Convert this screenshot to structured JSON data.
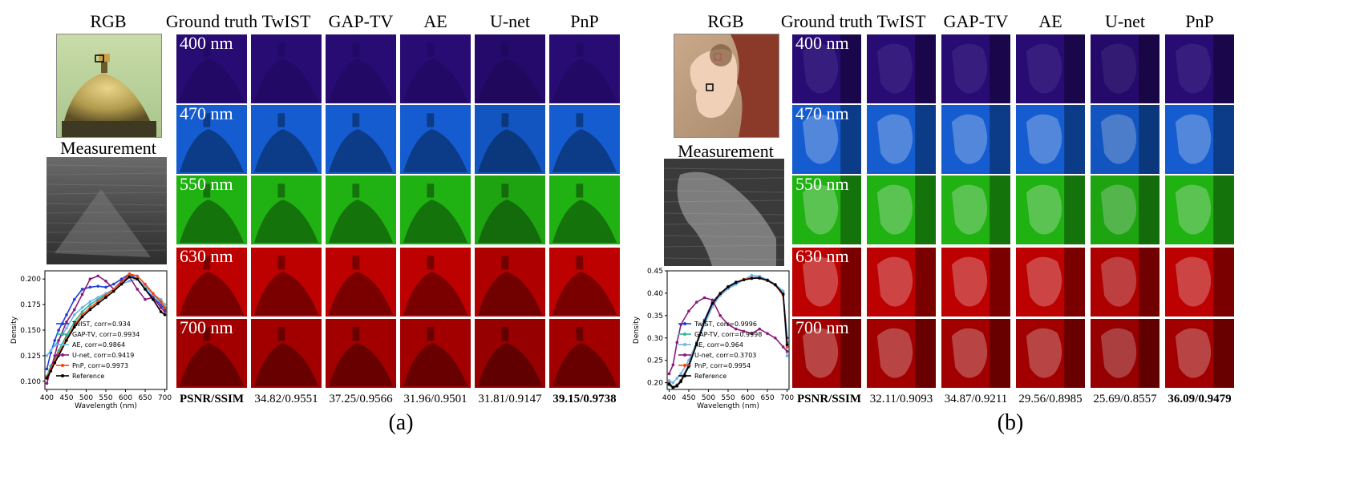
{
  "panel_a": {
    "rgb_label": "RGB",
    "measurement_label": "Measurement",
    "methods": [
      "Ground truth",
      "TwIST",
      "GAP-TV",
      "AE",
      "U-net",
      "PnP"
    ],
    "wavelengths": [
      "400 nm",
      "470 nm",
      "550 nm",
      "630 nm",
      "700 nm"
    ],
    "metric_label": "PSNR/SSIM",
    "metrics": [
      "34.82/0.9551",
      "37.25/0.9566",
      "31.96/0.9501",
      "31.81/0.9147",
      "39.15/0.9738"
    ],
    "subfig": "(a)"
  },
  "panel_b": {
    "rgb_label": "RGB",
    "measurement_label": "Measurement",
    "methods": [
      "Ground truth",
      "TwIST",
      "GAP-TV",
      "AE",
      "U-net",
      "PnP"
    ],
    "wavelengths": [
      "400 nm",
      "470 nm",
      "550 nm",
      "630 nm",
      "700 nm"
    ],
    "metric_label": "PSNR/SSIM",
    "metrics": [
      "32.11/0.9093",
      "34.87/0.9211",
      "29.56/0.8985",
      "25.69/0.8557",
      "36.09/0.9479"
    ],
    "subfig": "(b)"
  },
  "colors": {
    "wl_400": "#2a0c78",
    "wl_470": "#1560d8",
    "wl_550": "#22b814",
    "wl_630": "#c40000",
    "wl_700": "#a80000"
  },
  "chart_data": [
    {
      "type": "line",
      "xlabel": "Wavelength (nm)",
      "ylabel": "Density",
      "xlim": [
        395,
        705
      ],
      "ylim": [
        0.092,
        0.208
      ],
      "xticks": [
        400,
        450,
        500,
        550,
        600,
        650,
        700
      ],
      "yticks": [
        0.1,
        0.125,
        0.15,
        0.175,
        0.2
      ],
      "legend_position": "lower-left",
      "x": [
        400,
        410,
        420,
        430,
        450,
        470,
        490,
        510,
        530,
        550,
        570,
        590,
        610,
        630,
        650,
        670,
        690,
        700
      ],
      "series": [
        {
          "name": "TwIST, corr=0.934",
          "color": "#1f3fe0",
          "values": [
            0.112,
            0.128,
            0.14,
            0.15,
            0.165,
            0.18,
            0.19,
            0.192,
            0.193,
            0.192,
            0.195,
            0.2,
            0.205,
            0.2,
            0.19,
            0.182,
            0.175,
            0.17
          ]
        },
        {
          "name": "GAP-TV, corr=0.9934",
          "color": "#2bb59a",
          "values": [
            0.105,
            0.115,
            0.122,
            0.13,
            0.145,
            0.158,
            0.168,
            0.175,
            0.18,
            0.185,
            0.19,
            0.197,
            0.203,
            0.2,
            0.193,
            0.185,
            0.177,
            0.172
          ]
        },
        {
          "name": "AE, corr=0.9864",
          "color": "#6fb6e8",
          "values": [
            0.125,
            0.13,
            0.135,
            0.14,
            0.152,
            0.165,
            0.172,
            0.178,
            0.182,
            0.186,
            0.19,
            0.195,
            0.198,
            0.2,
            0.192,
            0.185,
            0.18,
            0.175
          ]
        },
        {
          "name": "U-net, corr=0.9419",
          "color": "#8a1a7a",
          "values": [
            0.098,
            0.112,
            0.125,
            0.14,
            0.158,
            0.17,
            0.185,
            0.2,
            0.203,
            0.198,
            0.19,
            0.198,
            0.202,
            0.19,
            0.18,
            0.182,
            0.172,
            0.168
          ]
        },
        {
          "name": "PnP, corr=0.9973",
          "color": "#f04a12",
          "values": [
            0.104,
            0.112,
            0.12,
            0.127,
            0.142,
            0.155,
            0.165,
            0.172,
            0.178,
            0.184,
            0.19,
            0.197,
            0.205,
            0.203,
            0.195,
            0.186,
            0.178,
            0.172
          ]
        },
        {
          "name": "Reference",
          "color": "#000000",
          "values": [
            0.103,
            0.11,
            0.118,
            0.125,
            0.14,
            0.153,
            0.163,
            0.17,
            0.176,
            0.182,
            0.188,
            0.195,
            0.202,
            0.2,
            0.19,
            0.18,
            0.168,
            0.165
          ]
        }
      ]
    },
    {
      "type": "line",
      "xlabel": "Wavelength (nm)",
      "ylabel": "Density",
      "xlim": [
        395,
        705
      ],
      "ylim": [
        0.185,
        0.45
      ],
      "xticks": [
        400,
        450,
        500,
        550,
        600,
        650,
        700
      ],
      "yticks": [
        0.2,
        0.25,
        0.3,
        0.35,
        0.4,
        0.45
      ],
      "legend_position": "lower-left",
      "x": [
        400,
        410,
        420,
        430,
        450,
        470,
        490,
        510,
        530,
        550,
        570,
        590,
        610,
        630,
        650,
        670,
        690,
        700
      ],
      "series": [
        {
          "name": "TwIST, corr=0.9996",
          "color": "#1f3fe0",
          "values": [
            0.2,
            0.19,
            0.195,
            0.205,
            0.24,
            0.29,
            0.34,
            0.38,
            0.4,
            0.415,
            0.425,
            0.43,
            0.435,
            0.435,
            0.43,
            0.42,
            0.4,
            0.3
          ]
        },
        {
          "name": "GAP-TV, corr=0.9998",
          "color": "#2bb59a",
          "values": [
            0.195,
            0.188,
            0.192,
            0.202,
            0.235,
            0.285,
            0.335,
            0.375,
            0.398,
            0.413,
            0.423,
            0.43,
            0.433,
            0.434,
            0.428,
            0.418,
            0.4,
            0.29
          ]
        },
        {
          "name": "AE, corr=0.964",
          "color": "#6fb6e8",
          "values": [
            0.205,
            0.2,
            0.21,
            0.22,
            0.25,
            0.29,
            0.33,
            0.37,
            0.395,
            0.41,
            0.42,
            0.43,
            0.44,
            0.438,
            0.43,
            0.42,
            0.405,
            0.26
          ]
        },
        {
          "name": "U-net, corr=0.3703",
          "color": "#8a1a7a",
          "values": [
            0.22,
            0.24,
            0.29,
            0.33,
            0.36,
            0.38,
            0.39,
            0.385,
            0.35,
            0.33,
            0.32,
            0.315,
            0.31,
            0.32,
            0.31,
            0.3,
            0.28,
            0.27
          ]
        },
        {
          "name": "PnP, corr=0.9954",
          "color": "#f04a12",
          "values": [
            0.198,
            0.19,
            0.194,
            0.204,
            0.238,
            0.288,
            0.338,
            0.378,
            0.4,
            0.414,
            0.424,
            0.431,
            0.434,
            0.433,
            0.428,
            0.418,
            0.395,
            0.28
          ]
        },
        {
          "name": "Reference",
          "color": "#000000",
          "values": [
            0.197,
            0.189,
            0.193,
            0.203,
            0.237,
            0.287,
            0.337,
            0.377,
            0.399,
            0.414,
            0.424,
            0.43,
            0.433,
            0.434,
            0.429,
            0.419,
            0.398,
            0.285
          ]
        }
      ]
    }
  ]
}
